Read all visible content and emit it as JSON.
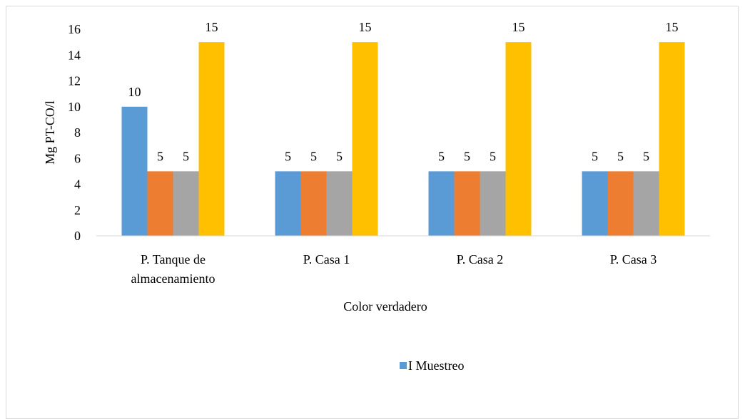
{
  "chart_data": {
    "type": "bar",
    "title": "",
    "xlabel": "Color verdadero",
    "ylabel": "Mg PT-CO/l",
    "ylim": [
      0,
      16
    ],
    "yticks": [
      0,
      2,
      4,
      6,
      8,
      10,
      12,
      14,
      16
    ],
    "grid": false,
    "legend_position": "bottom",
    "categories": [
      [
        "P. Tanque de",
        "almacenamiento"
      ],
      [
        "P. Casa 1"
      ],
      [
        "P. Casa 2"
      ],
      [
        "P. Casa 3"
      ]
    ],
    "series": [
      {
        "name": "I Muestreo",
        "values": [
          10,
          5,
          5,
          5
        ],
        "color": "#5b9bd5"
      },
      {
        "values": [
          5,
          5,
          5,
          5
        ],
        "color": "#ed7d31"
      },
      {
        "values": [
          5,
          5,
          5,
          5
        ],
        "color": "#a5a5a5"
      },
      {
        "values": [
          15,
          15,
          15,
          15
        ],
        "color": "#ffc000"
      }
    ]
  }
}
